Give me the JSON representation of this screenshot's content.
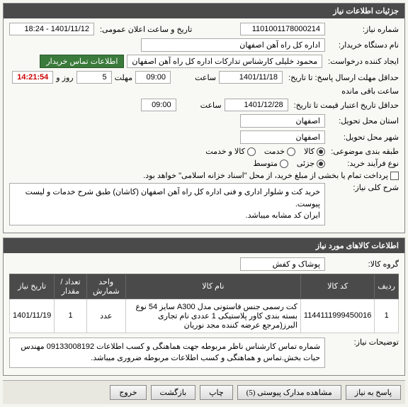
{
  "panel1": {
    "title": "جزئیات اطلاعات نیاز",
    "need_no_label": "شماره نیاز:",
    "need_no": "1101001178000214",
    "announce_label": "تاریخ و ساعت اعلان عمومی:",
    "announce_value": "1401/11/12 - 18:24",
    "buyer_label": "نام دستگاه خریدار:",
    "buyer_value": "اداره کل راه آهن اصفهان",
    "requester_label": "ایجاد کننده درخواست:",
    "requester_value": "محمود خلیلی کارشناس تدارکات اداره کل راه آهن اصفهان",
    "contact_link": "اطلاعات تماس خریدار",
    "deadline_label": "حداقل مهلت ارسال پاسخ: تا تاریخ:",
    "deadline_date": "1401/11/18",
    "time_label": "ساعت",
    "deadline_time": "09:00",
    "deadline_gap_label": "مهلت",
    "deadline_gap": "5",
    "days_label": "روز و",
    "timer": "14:21:54",
    "remaining_label": "ساعت باقی مانده",
    "validity_label": "حداقل تاریخ اعتبار قیمت تا تاریخ:",
    "validity_date": "1401/12/28",
    "validity_time": "09:00",
    "province_label": "استان محل تحویل:",
    "province_value": "اصفهان",
    "city_label": "شهر محل تحویل:",
    "city_value": "اصفهان",
    "subject_label": "طبقه بندی موضوعی:",
    "subject_goods": "کالا",
    "subject_service": "خدمت",
    "subject_both": "کالا و خدمت",
    "process_label": "نوع فرآیند خرید:",
    "process_partial": "جزئی",
    "process_mid": "متوسط",
    "payment_note": "پرداخت تمام یا بخشی از مبلغ خرید، از محل \"اسناد خزانه اسلامی\" خواهد بود.",
    "summary_label": "شرح کلی نیاز:",
    "summary_text": "خرید کت و شلوار اداری و فنی اداره کل راه آهن اصفهان (کاشان) طبق شرح خدمات و لیست پیوست.\nایران کد مشابه میباشد."
  },
  "panel2": {
    "title": "اطلاعات کالاهای مورد نیاز",
    "group_label": "گروه کالا:",
    "group_value": "پوشاک و کفش",
    "columns": [
      "ردیف",
      "کد کالا",
      "نام کالا",
      "واحد شمارش",
      "تعداد / مقدار",
      "تاریخ نیاز"
    ],
    "rows": [
      [
        "1",
        "1144111999450016",
        "کت رسمی جنس فاستونی مدل A300 سایز 54 نوع بسته بندی کاور پلاستیکی 1 عددی نام تجاری البرز(مرجع عرضه کننده مجد نوریان",
        "عدد",
        "1",
        "1401/11/19"
      ]
    ],
    "notes_label": "توضیحات نیاز:",
    "notes_text": "شماره تماس کارشناس ناظر  مربوطه جهت هماهنگی و کسب اطلاعات 09133008192 مهندس حیات بخش.تماس و هماهنگی و کسب اطلاعات مربوطه ضروری میباشد."
  },
  "footer": {
    "back": "پاسخ به نیاز",
    "attachments": "مشاهده مدارک پیوستی (5)",
    "print": "چاپ",
    "return": "بازگشت",
    "exit": "خروج"
  }
}
